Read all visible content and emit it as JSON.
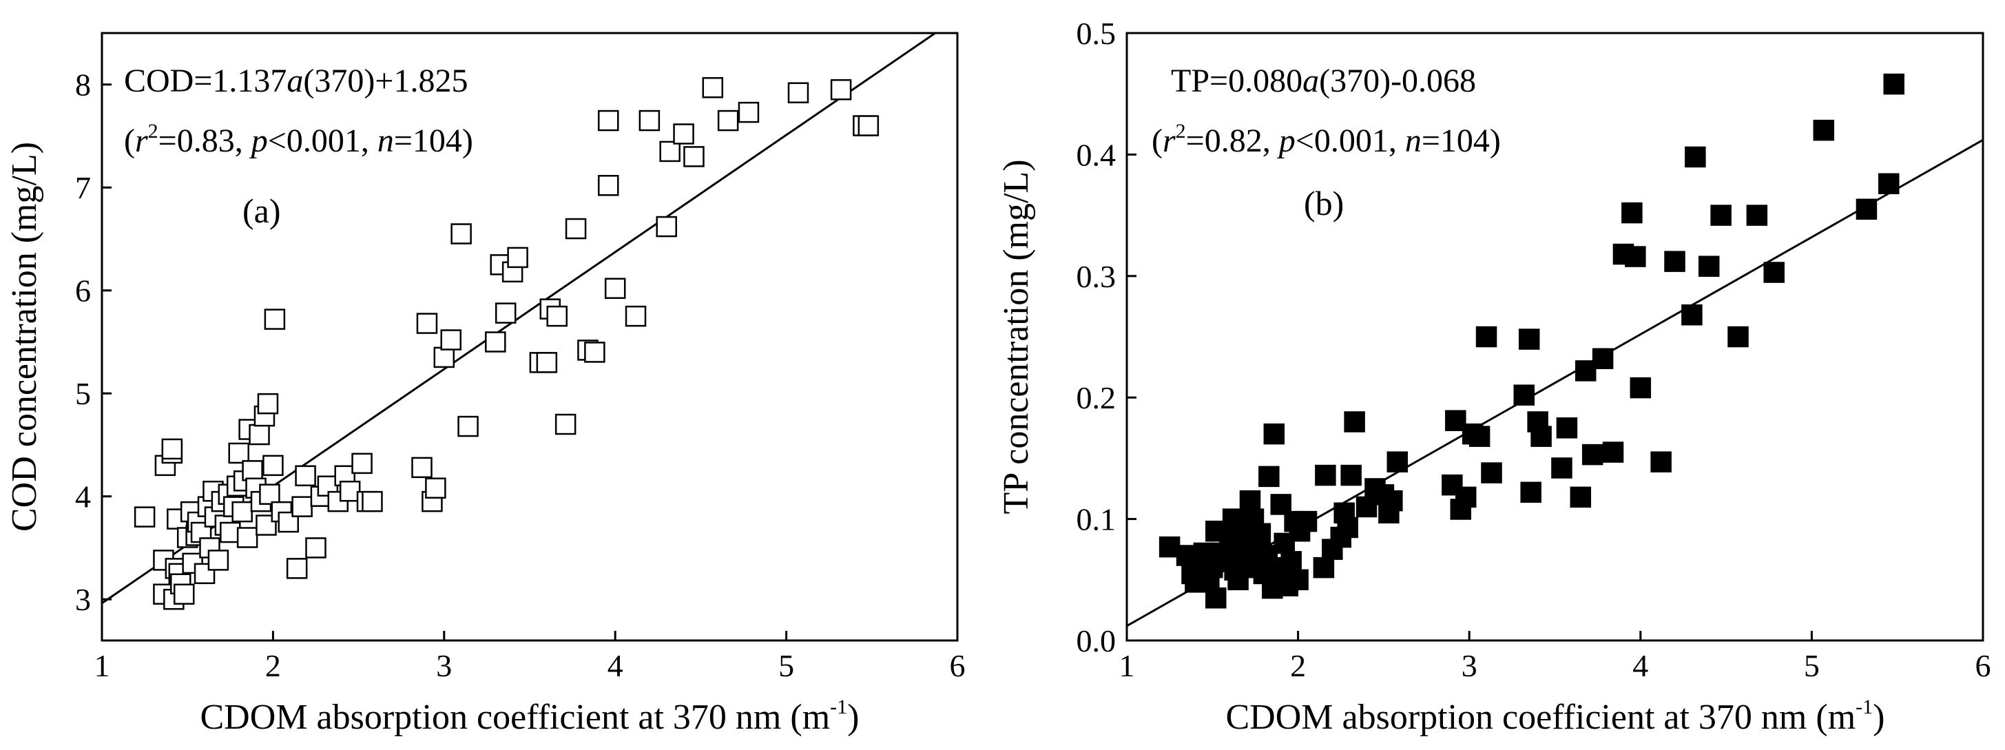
{
  "chart_data": [
    {
      "panel": "a",
      "type": "scatter",
      "title": "",
      "panel_label": "(a)",
      "xlabel": "CDOM absorption coefficient at 370 nm",
      "xunit_base": "m",
      "xunit_exp": "-1",
      "ylabel": "COD concentration (mg/L)",
      "xlim": [
        1,
        6
      ],
      "ylim": [
        2.6,
        8.5
      ],
      "xticks": [
        "1",
        "2",
        "3",
        "4",
        "5",
        "6"
      ],
      "yticks": [
        "3",
        "4",
        "5",
        "6",
        "7",
        "8"
      ],
      "xtick_values": [
        1,
        2,
        3,
        4,
        5,
        6
      ],
      "ytick_values": [
        3,
        4,
        5,
        6,
        7,
        8
      ],
      "marker": "open-square",
      "equation": {
        "lhs": "COD=1.137",
        "var": "a",
        "rhs": "(370)+1.825"
      },
      "stats": {
        "r2": "=0.83, ",
        "p": "<0.001, ",
        "n": "=104)"
      },
      "fit": {
        "slope": 1.137,
        "intercept": 1.825
      },
      "points": [
        [
          1.25,
          3.8
        ],
        [
          1.36,
          3.38
        ],
        [
          1.36,
          3.05
        ],
        [
          1.37,
          4.3
        ],
        [
          1.41,
          4.42
        ],
        [
          1.41,
          4.46
        ],
        [
          1.42,
          3.0
        ],
        [
          1.43,
          3.3
        ],
        [
          1.44,
          3.78
        ],
        [
          1.45,
          3.25
        ],
        [
          1.46,
          3.15
        ],
        [
          1.48,
          3.05
        ],
        [
          1.5,
          3.6
        ],
        [
          1.52,
          3.85
        ],
        [
          1.53,
          3.35
        ],
        [
          1.55,
          3.62
        ],
        [
          1.56,
          3.75
        ],
        [
          1.58,
          3.65
        ],
        [
          1.6,
          3.25
        ],
        [
          1.62,
          3.9
        ],
        [
          1.63,
          3.5
        ],
        [
          1.65,
          4.05
        ],
        [
          1.66,
          3.8
        ],
        [
          1.68,
          3.38
        ],
        [
          1.7,
          3.95
        ],
        [
          1.72,
          3.72
        ],
        [
          1.74,
          4.02
        ],
        [
          1.75,
          3.65
        ],
        [
          1.77,
          3.9
        ],
        [
          1.79,
          4.1
        ],
        [
          1.8,
          4.42
        ],
        [
          1.82,
          3.85
        ],
        [
          1.83,
          4.15
        ],
        [
          1.85,
          3.6
        ],
        [
          1.86,
          4.65
        ],
        [
          1.88,
          4.25
        ],
        [
          1.9,
          4.08
        ],
        [
          1.92,
          4.6
        ],
        [
          1.93,
          3.95
        ],
        [
          1.95,
          4.78
        ],
        [
          1.96,
          3.72
        ],
        [
          1.97,
          4.9
        ],
        [
          1.98,
          4.02
        ],
        [
          2.0,
          4.3
        ],
        [
          2.01,
          5.72
        ],
        [
          2.05,
          3.85
        ],
        [
          2.09,
          3.75
        ],
        [
          2.14,
          3.3
        ],
        [
          2.17,
          3.9
        ],
        [
          2.19,
          4.2
        ],
        [
          2.25,
          3.5
        ],
        [
          2.28,
          4.0
        ],
        [
          2.32,
          4.1
        ],
        [
          2.38,
          3.95
        ],
        [
          2.42,
          4.2
        ],
        [
          2.45,
          4.05
        ],
        [
          2.52,
          4.32
        ],
        [
          2.55,
          3.95
        ],
        [
          2.58,
          3.95
        ],
        [
          2.87,
          4.28
        ],
        [
          2.9,
          5.68
        ],
        [
          2.93,
          3.95
        ],
        [
          2.95,
          4.08
        ],
        [
          3.0,
          5.35
        ],
        [
          3.04,
          5.52
        ],
        [
          3.1,
          6.55
        ],
        [
          3.14,
          4.68
        ],
        [
          3.3,
          5.5
        ],
        [
          3.33,
          6.25
        ],
        [
          3.36,
          5.78
        ],
        [
          3.4,
          6.18
        ],
        [
          3.43,
          6.32
        ],
        [
          3.56,
          5.3
        ],
        [
          3.6,
          5.3
        ],
        [
          3.62,
          5.82
        ],
        [
          3.66,
          5.75
        ],
        [
          3.71,
          4.7
        ],
        [
          3.77,
          6.6
        ],
        [
          3.84,
          5.42
        ],
        [
          3.88,
          5.4
        ],
        [
          3.96,
          7.65
        ],
        [
          3.96,
          7.02
        ],
        [
          4.0,
          6.02
        ],
        [
          4.12,
          5.75
        ],
        [
          4.2,
          7.65
        ],
        [
          4.3,
          6.62
        ],
        [
          4.32,
          7.35
        ],
        [
          4.4,
          7.52
        ],
        [
          4.46,
          7.3
        ],
        [
          4.57,
          7.97
        ],
        [
          4.66,
          7.65
        ],
        [
          4.78,
          7.73
        ],
        [
          5.07,
          7.92
        ],
        [
          5.32,
          7.95
        ],
        [
          5.45,
          7.6
        ],
        [
          5.48,
          7.6
        ]
      ]
    },
    {
      "panel": "b",
      "type": "scatter",
      "title": "",
      "panel_label": "(b)",
      "xlabel": "CDOM absorption coefficient at 370 nm",
      "xunit_base": "m",
      "xunit_exp": "-1",
      "ylabel": "TP concentration (mg/L)",
      "xlim": [
        1,
        6
      ],
      "ylim": [
        0.0,
        0.5
      ],
      "xticks": [
        "1",
        "2",
        "3",
        "4",
        "5",
        "6"
      ],
      "yticks": [
        "0.0",
        "0.1",
        "0.2",
        "0.3",
        "0.4",
        "0.5"
      ],
      "xtick_values": [
        1,
        2,
        3,
        4,
        5,
        6
      ],
      "ytick_values": [
        0.0,
        0.1,
        0.2,
        0.3,
        0.4,
        0.5
      ],
      "marker": "filled-square",
      "equation": {
        "lhs": "TP=0.080",
        "var": "a",
        "rhs": "(370)-0.068"
      },
      "stats": {
        "r2": "=0.82, ",
        "p": "<0.001, ",
        "n": "=104)"
      },
      "fit": {
        "slope": 0.08,
        "intercept": -0.068
      },
      "points": [
        [
          1.25,
          0.077
        ],
        [
          1.35,
          0.07
        ],
        [
          1.38,
          0.055
        ],
        [
          1.4,
          0.048
        ],
        [
          1.42,
          0.065
        ],
        [
          1.45,
          0.072
        ],
        [
          1.48,
          0.05
        ],
        [
          1.5,
          0.06
        ],
        [
          1.52,
          0.035
        ],
        [
          1.52,
          0.09
        ],
        [
          1.55,
          0.072
        ],
        [
          1.57,
          0.065
        ],
        [
          1.6,
          0.085
        ],
        [
          1.62,
          0.1
        ],
        [
          1.63,
          0.058
        ],
        [
          1.65,
          0.05
        ],
        [
          1.66,
          0.075
        ],
        [
          1.68,
          0.09
        ],
        [
          1.7,
          0.068
        ],
        [
          1.72,
          0.115
        ],
        [
          1.74,
          0.1
        ],
        [
          1.75,
          0.06
        ],
        [
          1.77,
          0.078
        ],
        [
          1.78,
          0.088
        ],
        [
          1.8,
          0.055
        ],
        [
          1.82,
          0.07
        ],
        [
          1.83,
          0.135
        ],
        [
          1.85,
          0.043
        ],
        [
          1.86,
          0.17
        ],
        [
          1.88,
          0.06
        ],
        [
          1.9,
          0.112
        ],
        [
          1.92,
          0.08
        ],
        [
          1.94,
          0.045
        ],
        [
          1.96,
          0.065
        ],
        [
          1.98,
          0.098
        ],
        [
          2.0,
          0.05
        ],
        [
          2.01,
          0.09
        ],
        [
          2.05,
          0.098
        ],
        [
          2.15,
          0.06
        ],
        [
          2.16,
          0.136
        ],
        [
          2.2,
          0.075
        ],
        [
          2.25,
          0.085
        ],
        [
          2.27,
          0.105
        ],
        [
          2.29,
          0.093
        ],
        [
          2.31,
          0.136
        ],
        [
          2.33,
          0.18
        ],
        [
          2.4,
          0.11
        ],
        [
          2.45,
          0.125
        ],
        [
          2.5,
          0.12
        ],
        [
          2.53,
          0.105
        ],
        [
          2.55,
          0.115
        ],
        [
          2.58,
          0.147
        ],
        [
          2.9,
          0.128
        ],
        [
          2.92,
          0.181
        ],
        [
          2.95,
          0.108
        ],
        [
          2.98,
          0.118
        ],
        [
          3.02,
          0.17
        ],
        [
          3.06,
          0.168
        ],
        [
          3.1,
          0.25
        ],
        [
          3.13,
          0.138
        ],
        [
          3.32,
          0.202
        ],
        [
          3.35,
          0.248
        ],
        [
          3.36,
          0.122
        ],
        [
          3.4,
          0.18
        ],
        [
          3.42,
          0.168
        ],
        [
          3.54,
          0.142
        ],
        [
          3.57,
          0.175
        ],
        [
          3.65,
          0.118
        ],
        [
          3.68,
          0.222
        ],
        [
          3.72,
          0.153
        ],
        [
          3.78,
          0.232
        ],
        [
          3.84,
          0.155
        ],
        [
          3.9,
          0.318
        ],
        [
          3.95,
          0.352
        ],
        [
          3.97,
          0.316
        ],
        [
          4.0,
          0.208
        ],
        [
          4.12,
          0.147
        ],
        [
          4.2,
          0.312
        ],
        [
          4.3,
          0.268
        ],
        [
          4.32,
          0.398
        ],
        [
          4.4,
          0.308
        ],
        [
          4.47,
          0.35
        ],
        [
          4.57,
          0.25
        ],
        [
          4.68,
          0.35
        ],
        [
          4.78,
          0.303
        ],
        [
          5.07,
          0.42
        ],
        [
          5.32,
          0.355
        ],
        [
          5.45,
          0.376
        ],
        [
          5.48,
          0.458
        ]
      ]
    }
  ]
}
